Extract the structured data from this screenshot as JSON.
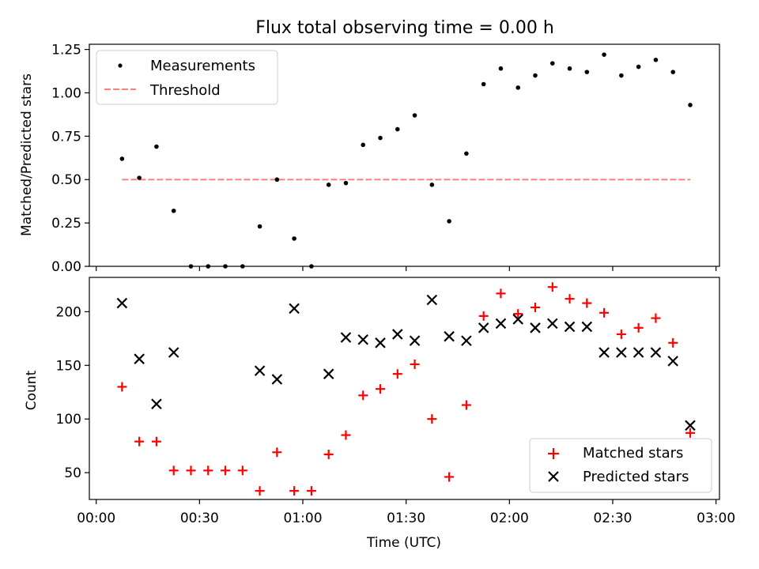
{
  "chart_data": [
    {
      "type": "scatter",
      "title": "Flux total observing time = 0.00 h",
      "xlabel": "",
      "ylabel": "Matched/Predicted stars",
      "ylim": [
        0,
        1.28
      ],
      "yticks": [
        "0.00",
        "0.25",
        "0.50",
        "0.75",
        "1.00",
        "1.25"
      ],
      "ytick_values": [
        0,
        0.25,
        0.5,
        0.75,
        1.0,
        1.25
      ],
      "xlim_minutes": [
        -2,
        181
      ],
      "legend_position": "upper-left",
      "series": [
        {
          "name": "Measurements",
          "marker": "dot",
          "color": "#000000",
          "x_minutes": [
            7.5,
            12.5,
            17.5,
            22.5,
            27.5,
            32.5,
            37.5,
            42.5,
            47.5,
            52.5,
            57.5,
            62.5,
            67.5,
            72.5,
            77.5,
            82.5,
            87.5,
            92.5,
            97.5,
            102.5,
            107.5,
            112.5,
            117.5,
            122.5,
            127.5,
            132.5,
            137.5,
            142.5,
            147.5,
            152.5,
            157.5,
            162.5,
            167.5,
            172.5
          ],
          "values": [
            0.62,
            0.51,
            0.69,
            0.32,
            0.0,
            0.0,
            0.0,
            0.0,
            0.23,
            0.5,
            0.16,
            0.0,
            0.47,
            0.48,
            0.7,
            0.74,
            0.79,
            0.87,
            0.47,
            0.26,
            0.65,
            1.05,
            1.14,
            1.03,
            1.1,
            1.17,
            1.14,
            1.12,
            1.22,
            1.1,
            1.15,
            1.19,
            1.12,
            0.93
          ]
        },
        {
          "name": "Threshold",
          "style": "dashed-line",
          "color": "#ff7f7f",
          "x_minutes": [
            7.5,
            172.5
          ],
          "values": [
            0.5,
            0.5
          ]
        }
      ]
    },
    {
      "type": "scatter",
      "title": "",
      "xlabel": "Time (UTC)",
      "ylabel": "Count",
      "ylim": [
        25,
        232
      ],
      "yticks": [
        "50",
        "100",
        "150",
        "200"
      ],
      "ytick_values": [
        50,
        100,
        150,
        200
      ],
      "xlim_minutes": [
        -2,
        181
      ],
      "xticks": [
        "00:00",
        "00:30",
        "01:00",
        "01:30",
        "02:00",
        "02:30",
        "03:00"
      ],
      "xtick_minutes": [
        0,
        30,
        60,
        90,
        120,
        150,
        180
      ],
      "legend_position": "lower-right",
      "series": [
        {
          "name": "Matched stars",
          "marker": "plus",
          "color": "#ff0000",
          "x_minutes": [
            7.5,
            12.5,
            17.5,
            22.5,
            27.5,
            32.5,
            37.5,
            42.5,
            47.5,
            52.5,
            57.5,
            62.5,
            67.5,
            72.5,
            77.5,
            82.5,
            87.5,
            92.5,
            97.5,
            102.5,
            107.5,
            112.5,
            117.5,
            122.5,
            127.5,
            132.5,
            137.5,
            142.5,
            147.5,
            152.5,
            157.5,
            162.5,
            167.5,
            172.5
          ],
          "values": [
            130,
            79,
            79,
            52,
            52,
            52,
            52,
            52,
            33,
            69,
            33,
            33,
            67,
            85,
            122,
            128,
            142,
            151,
            100,
            46,
            113,
            196,
            217,
            198,
            204,
            223,
            212,
            208,
            199,
            179,
            185,
            194,
            171,
            87
          ]
        },
        {
          "name": "Predicted stars",
          "marker": "x",
          "color": "#000000",
          "x_minutes": [
            7.5,
            12.5,
            17.5,
            22.5,
            47.5,
            52.5,
            57.5,
            67.5,
            72.5,
            77.5,
            82.5,
            87.5,
            92.5,
            97.5,
            102.5,
            107.5,
            112.5,
            117.5,
            122.5,
            127.5,
            132.5,
            137.5,
            142.5,
            147.5,
            152.5,
            157.5,
            162.5,
            167.5,
            172.5
          ],
          "values": [
            208,
            156,
            114,
            162,
            145,
            137,
            203,
            142,
            176,
            174,
            171,
            179,
            173,
            211,
            177,
            173,
            185,
            189,
            193,
            185,
            189,
            186,
            186,
            162,
            162,
            162,
            162,
            154,
            94
          ]
        }
      ]
    }
  ]
}
